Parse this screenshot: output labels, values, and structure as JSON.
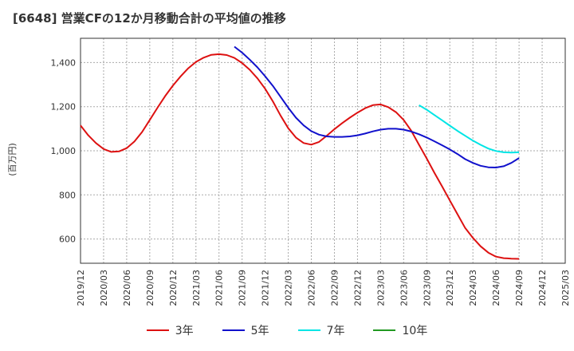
{
  "chart_data": {
    "type": "line",
    "title": "[6648]  営業CFの12か月移動合計の平均値の推移",
    "ylabel": "(百万円)",
    "xlabel": "",
    "ylim": [
      490,
      1510
    ],
    "yticks": [
      600,
      800,
      1000,
      1200,
      1400
    ],
    "ytick_labels": [
      "600",
      "800",
      "1,000",
      "1,200",
      "1,400"
    ],
    "x_ticks": [
      "2019/12",
      "2020/03",
      "2020/06",
      "2020/09",
      "2020/12",
      "2021/03",
      "2021/06",
      "2021/09",
      "2021/12",
      "2022/03",
      "2022/06",
      "2022/09",
      "2022/12",
      "2023/03",
      "2023/06",
      "2023/09",
      "2023/12",
      "2024/03",
      "2024/06",
      "2024/09",
      "2024/12",
      "2025/03"
    ],
    "grid": true,
    "legend_position": "bottom",
    "series": [
      {
        "name": "3年",
        "color": "#dd1111",
        "x": [
          "2019/12",
          "2020/01",
          "2020/02",
          "2020/03",
          "2020/04",
          "2020/05",
          "2020/06",
          "2020/07",
          "2020/08",
          "2020/09",
          "2020/10",
          "2020/11",
          "2020/12",
          "2021/01",
          "2021/02",
          "2021/03",
          "2021/04",
          "2021/05",
          "2021/06",
          "2021/07",
          "2021/08",
          "2021/09",
          "2021/10",
          "2021/11",
          "2021/12",
          "2022/01",
          "2022/02",
          "2022/03",
          "2022/04",
          "2022/05",
          "2022/06",
          "2022/07",
          "2022/08",
          "2022/09",
          "2022/10",
          "2022/11",
          "2022/12",
          "2023/01",
          "2023/02",
          "2023/03",
          "2023/04",
          "2023/05",
          "2023/06",
          "2023/07",
          "2023/08",
          "2023/09",
          "2023/10",
          "2023/11",
          "2023/12",
          "2024/01",
          "2024/02",
          "2024/03",
          "2024/04",
          "2024/05",
          "2024/06",
          "2024/07",
          "2024/08",
          "2024/09"
        ],
        "values": [
          1115,
          1070,
          1035,
          1008,
          995,
          997,
          1012,
          1042,
          1085,
          1140,
          1195,
          1248,
          1295,
          1337,
          1374,
          1403,
          1422,
          1435,
          1438,
          1434,
          1421,
          1398,
          1367,
          1328,
          1281,
          1224,
          1160,
          1102,
          1060,
          1035,
          1028,
          1040,
          1068,
          1098,
          1125,
          1150,
          1173,
          1193,
          1207,
          1210,
          1198,
          1175,
          1140,
          1090,
          1027,
          965,
          900,
          838,
          775,
          712,
          650,
          605,
          567,
          538,
          520,
          513,
          511,
          510
        ]
      },
      {
        "name": "5年",
        "color": "#1111cc",
        "x": [
          "2021/08",
          "2021/09",
          "2021/10",
          "2021/11",
          "2021/12",
          "2022/01",
          "2022/02",
          "2022/03",
          "2022/04",
          "2022/05",
          "2022/06",
          "2022/07",
          "2022/08",
          "2022/09",
          "2022/10",
          "2022/11",
          "2022/12",
          "2023/01",
          "2023/02",
          "2023/03",
          "2023/04",
          "2023/05",
          "2023/06",
          "2023/07",
          "2023/08",
          "2023/09",
          "2023/10",
          "2023/11",
          "2023/12",
          "2024/01",
          "2024/02",
          "2024/03",
          "2024/04",
          "2024/05",
          "2024/06",
          "2024/07",
          "2024/08",
          "2024/09"
        ],
        "values": [
          1472,
          1445,
          1413,
          1378,
          1338,
          1294,
          1245,
          1195,
          1150,
          1115,
          1089,
          1073,
          1065,
          1063,
          1063,
          1065,
          1070,
          1078,
          1088,
          1096,
          1100,
          1100,
          1096,
          1087,
          1075,
          1060,
          1043,
          1025,
          1006,
          985,
          962,
          945,
          932,
          925,
          924,
          930,
          945,
          967
        ]
      },
      {
        "name": "7年",
        "color": "#00e5e5",
        "x": [
          "2023/08",
          "2023/09",
          "2023/10",
          "2023/11",
          "2023/12",
          "2024/01",
          "2024/02",
          "2024/03",
          "2024/04",
          "2024/05",
          "2024/06",
          "2024/07",
          "2024/08",
          "2024/09"
        ],
        "values": [
          1207,
          1186,
          1162,
          1138,
          1114,
          1090,
          1068,
          1046,
          1027,
          1010,
          999,
          993,
          992,
          993
        ]
      },
      {
        "name": "10年",
        "color": "#229922",
        "x": [],
        "values": []
      }
    ]
  }
}
